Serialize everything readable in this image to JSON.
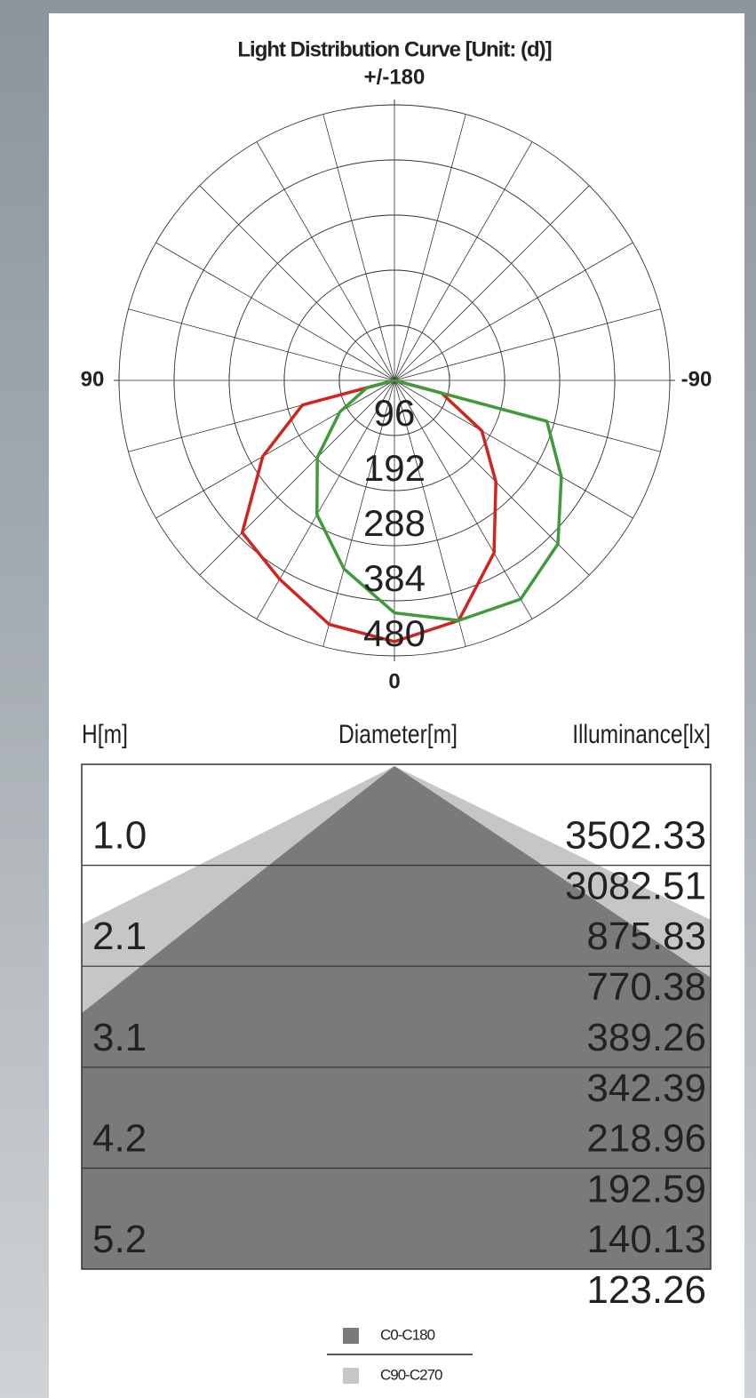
{
  "chart_data": {
    "type": "polar",
    "title": "Light Distribution Curve [Unit: (d)]",
    "xticks": [
      {
        "value": 180,
        "label": "+/-180"
      },
      90,
      -90,
      0
    ],
    "x": [
      90,
      75,
      60,
      45,
      30,
      15,
      0,
      -15,
      -30,
      -45,
      -60,
      -75,
      -90
    ],
    "series": [
      {
        "color": "#d0241f",
        "values": [
          0,
          166,
          265,
          375,
          400,
          440,
          455,
          433,
          347,
          250,
          176,
          85,
          0
        ]
      },
      {
        "color": "#3f9a3a",
        "values": [
          0,
          50,
          110,
          190,
          270,
          340,
          405,
          433,
          440,
          403,
          336,
          275,
          0
        ]
      }
    ],
    "rlim": [
      0,
      480
    ],
    "rticks": [
      96,
      192,
      288,
      384,
      480
    ]
  },
  "illuminance_table": {
    "headers": [
      "H[m]",
      "Diameter[m]",
      "Illuminance[lx]"
    ],
    "rows": [
      {
        "h": "1.0",
        "values": [
          3502.33,
          3082.51
        ]
      },
      {
        "h": "2.1",
        "values": [
          875.83,
          770.38
        ]
      },
      {
        "h": "3.1",
        "values": [
          389.26,
          342.39
        ]
      },
      {
        "h": "4.2",
        "values": [
          218.96,
          192.59
        ]
      },
      {
        "h": "5.2",
        "values": [
          140.13,
          123.26
        ]
      }
    ],
    "legend": [
      {
        "name": "C0-C180",
        "color": "#7a7a7a"
      },
      {
        "name": "C90-C270",
        "color": "#c6c6c6"
      }
    ]
  }
}
